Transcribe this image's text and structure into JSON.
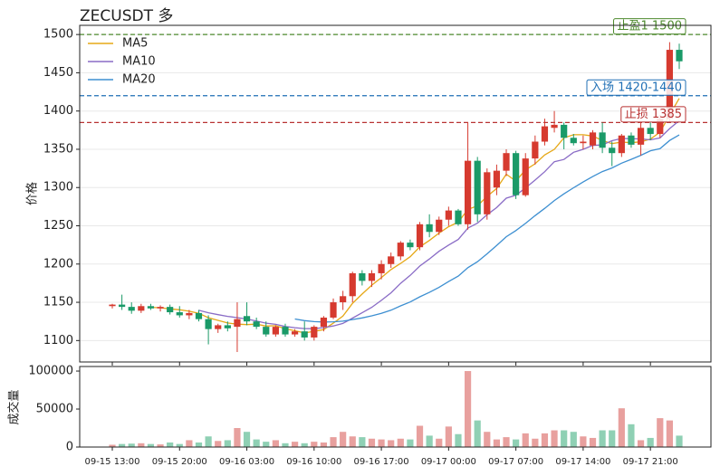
{
  "chart_data": {
    "type": "candlestick",
    "title": "ZECUSDT  多",
    "ylabel": "价格",
    "x": [
      "09-15 13:00",
      null,
      null,
      null,
      null,
      null,
      null,
      "09-15 20:00",
      null,
      null,
      null,
      null,
      null,
      null,
      "09-16 03:00",
      null,
      null,
      null,
      null,
      null,
      null,
      "09-16 10:00",
      null,
      null,
      null,
      null,
      null,
      null,
      "09-16 17:00",
      null,
      null,
      null,
      null,
      null,
      null,
      "09-17 00:00",
      null,
      null,
      null,
      null,
      null,
      null,
      "09-17 07:00",
      null,
      null,
      null,
      null,
      null,
      null,
      "09-17 14:00",
      null,
      null,
      null,
      null,
      null,
      null,
      "09-17 21:00",
      null,
      null,
      null
    ],
    "open": [
      1145,
      1147,
      1144,
      1139,
      1145,
      1142,
      1144,
      1137,
      1133,
      1136,
      1128,
      1115,
      1120,
      1118,
      1132,
      1125,
      1118,
      1108,
      1118,
      1108,
      1112,
      1104,
      1118,
      1130,
      1150,
      1158,
      1188,
      1178,
      1188,
      1200,
      1210,
      1228,
      1222,
      1252,
      1242,
      1258,
      1270,
      1252,
      1335,
      1265,
      1300,
      1322,
      1345,
      1290,
      1338,
      1360,
      1378,
      1382,
      1365,
      1358,
      1355,
      1372,
      1352,
      1345,
      1368,
      1356,
      1378,
      1370,
      1390,
      1480
    ],
    "high": [
      1148,
      1160,
      1150,
      1148,
      1148,
      1146,
      1147,
      1145,
      1140,
      1140,
      1133,
      1122,
      1125,
      1150,
      1150,
      1130,
      1125,
      1120,
      1122,
      1115,
      1125,
      1120,
      1132,
      1155,
      1165,
      1190,
      1192,
      1192,
      1205,
      1215,
      1230,
      1232,
      1255,
      1265,
      1262,
      1275,
      1272,
      1385,
      1340,
      1325,
      1330,
      1350,
      1348,
      1345,
      1368,
      1390,
      1400,
      1385,
      1370,
      1368,
      1375,
      1385,
      1360,
      1370,
      1372,
      1385,
      1385,
      1395,
      1490,
      1488
    ],
    "low": [
      1142,
      1140,
      1135,
      1136,
      1140,
      1138,
      1134,
      1130,
      1128,
      1125,
      1095,
      1110,
      1112,
      1085,
      1120,
      1115,
      1105,
      1105,
      1105,
      1105,
      1100,
      1100,
      1112,
      1128,
      1140,
      1150,
      1172,
      1170,
      1180,
      1195,
      1205,
      1218,
      1218,
      1235,
      1238,
      1250,
      1250,
      1245,
      1255,
      1258,
      1290,
      1315,
      1285,
      1288,
      1330,
      1355,
      1372,
      1350,
      1355,
      1350,
      1350,
      1345,
      1328,
      1340,
      1352,
      1342,
      1362,
      1365,
      1385,
      1455
    ],
    "close": [
      1147,
      1144,
      1139,
      1145,
      1142,
      1144,
      1137,
      1133,
      1136,
      1128,
      1115,
      1120,
      1116,
      1128,
      1125,
      1118,
      1108,
      1118,
      1108,
      1112,
      1104,
      1118,
      1130,
      1150,
      1158,
      1188,
      1178,
      1188,
      1200,
      1210,
      1228,
      1222,
      1252,
      1242,
      1258,
      1270,
      1252,
      1335,
      1265,
      1320,
      1322,
      1345,
      1290,
      1338,
      1360,
      1380,
      1382,
      1365,
      1358,
      1360,
      1372,
      1352,
      1345,
      1368,
      1356,
      1378,
      1370,
      1390,
      1480,
      1465
    ],
    "up_color": "#d63a2f",
    "down_color": "#1a9a68",
    "series": [
      {
        "name": "MA5",
        "color": "#e6a817",
        "values": [
          null,
          null,
          null,
          null,
          1143.4,
          1142.8,
          1141.4,
          1140.2,
          1138.4,
          1135.6,
          1129.8,
          1126.4,
          1123,
          1121.4,
          1120.8,
          1121.4,
          1119,
          1119.4,
          1115.4,
          1112.8,
          1110,
          1112,
          1114.4,
          1122.8,
          1132,
          1148.8,
          1160.8,
          1172.4,
          1182.4,
          1192.8,
          1200.8,
          1209.6,
          1222.4,
          1230.8,
          1240.4,
          1248.8,
          1254.8,
          1271.4,
          1276,
          1288.4,
          1298.8,
          1317.4,
          1308.4,
          1323,
          1331,
          1342.6,
          1350,
          1365,
          1369,
          1369,
          1367.4,
          1361.4,
          1357.4,
          1359.4,
          1358.6,
          1359.8,
          1363.4,
          1372.4,
          1394.8,
          1416.6
        ]
      },
      {
        "name": "MA10",
        "color": "#8a6cc6",
        "values": [
          null,
          null,
          null,
          null,
          null,
          null,
          null,
          null,
          null,
          1139.5,
          1136.3,
          1133.9,
          1131.6,
          1129.9,
          1128.2,
          1125.6,
          1122.7,
          1121.2,
          1118.4,
          1116.8,
          1115.7,
          1115.5,
          1116.9,
          1119.1,
          1122.4,
          1129.4,
          1136.4,
          1143.4,
          1152.6,
          1162.4,
          1174.8,
          1185.2,
          1197.4,
          1206.6,
          1216.6,
          1224.8,
          1232.2,
          1246.9,
          1253.4,
          1264.4,
          1273.8,
          1286.1,
          1289.9,
          1299.5,
          1309.7,
          1320.7,
          1333.7,
          1336.7,
          1346,
          1350,
          1355,
          1355.7,
          1361.2,
          1364.2,
          1363.8,
          1363.6,
          1362.4,
          1364.9,
          1377.1,
          1387.6
        ]
      },
      {
        "name": "MA20",
        "color": "#3d8fd1",
        "values": [
          null,
          null,
          null,
          null,
          null,
          null,
          null,
          null,
          null,
          null,
          null,
          null,
          null,
          null,
          null,
          null,
          null,
          null,
          null,
          1128.2,
          1126,
          1124.7,
          1124.3,
          1124.5,
          1125.3,
          1127.5,
          1129.6,
          1132.3,
          1135.5,
          1139.6,
          1145.3,
          1150.4,
          1157.2,
          1162.9,
          1169.5,
          1177.1,
          1184.3,
          1195.2,
          1203,
          1213.4,
          1224.3,
          1235.7,
          1243.7,
          1253.1,
          1263.2,
          1272.8,
          1283,
          1291.8,
          1299.7,
          1307.2,
          1314.4,
          1320.9,
          1325.6,
          1331.9,
          1336.8,
          1342.2,
          1348.1,
          1350.8,
          1361.6,
          1368.8
        ]
      }
    ],
    "levels": [
      {
        "label": "止盈1 1500",
        "value": 1500,
        "color": "#4e8a2e"
      },
      {
        "label": "入场 1420-1440",
        "value": 1420,
        "color": "#1f6fb5"
      },
      {
        "label": "止损 1385",
        "value": 1385,
        "color": "#b83232"
      }
    ],
    "ylim": [
      1072,
      1512
    ],
    "yticks": [
      1100,
      1150,
      1200,
      1250,
      1300,
      1350,
      1400,
      1450,
      1500
    ],
    "grid": true,
    "legend": "upper left",
    "volume": {
      "ylabel": "成交量",
      "values": [
        3000,
        4000,
        4500,
        5000,
        4000,
        3500,
        6000,
        4000,
        9000,
        6000,
        14000,
        8000,
        9000,
        25000,
        20000,
        10000,
        7000,
        9000,
        5000,
        7000,
        5000,
        7000,
        6000,
        13000,
        20000,
        14000,
        13000,
        11000,
        10000,
        9000,
        11000,
        10000,
        28000,
        15000,
        11000,
        27000,
        17000,
        100000,
        35000,
        20000,
        10000,
        13000,
        10000,
        18000,
        11000,
        18000,
        22000,
        22000,
        20000,
        14000,
        12000,
        22000,
        22000,
        51000,
        30000,
        9000,
        12000,
        38000,
        35000,
        15000
      ],
      "up_color": "#e8a09e",
      "down_color": "#8fd0b4",
      "ylim": [
        0,
        106000
      ],
      "yticks": [
        0,
        50000,
        100000
      ]
    }
  }
}
